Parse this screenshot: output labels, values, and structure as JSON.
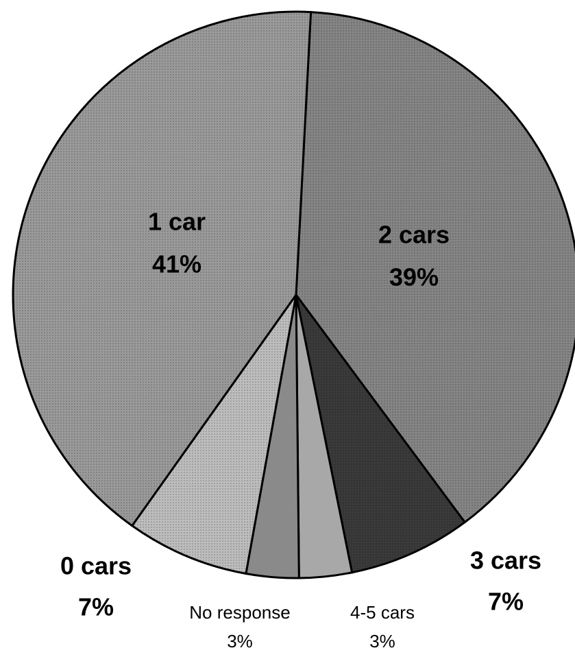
{
  "chart_data": {
    "type": "pie",
    "categories": [
      "2 cars",
      "3 cars",
      "4-5 cars",
      "No response",
      "0 cars",
      "1 car"
    ],
    "values": [
      39,
      7,
      3,
      3,
      7,
      41
    ],
    "value_labels": [
      "39%",
      "7%",
      "3%",
      "3%",
      "7%",
      "41%"
    ],
    "colors": [
      "#858585",
      "#3a3a3a",
      "#a8a8a8",
      "#8a8a8a",
      "#bdbdbd",
      "#9a9a9a"
    ]
  }
}
